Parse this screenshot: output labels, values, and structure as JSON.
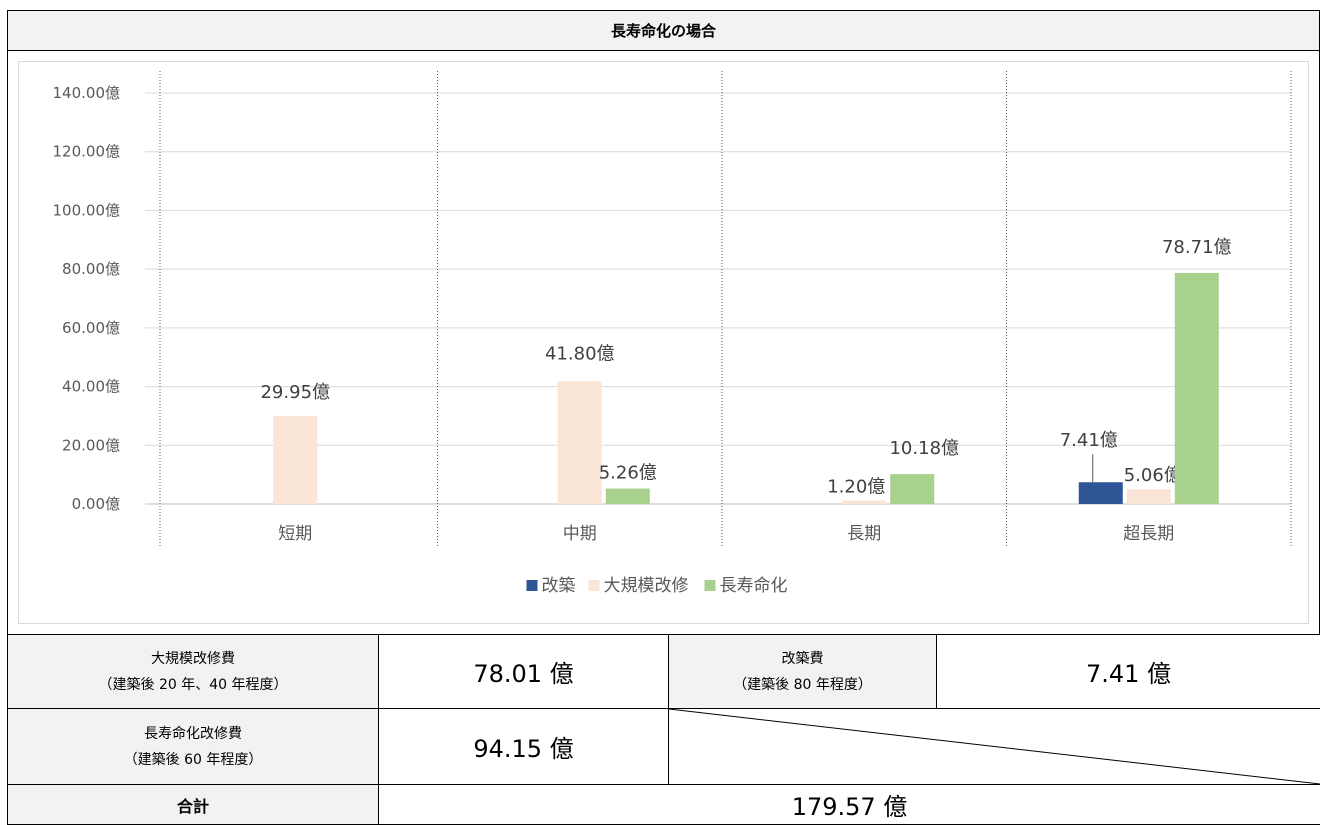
{
  "title": "長寿命化の場合",
  "chart_data": {
    "type": "bar",
    "categories": [
      "短期",
      "中期",
      "長期",
      "超長期"
    ],
    "series": [
      {
        "name": "改築",
        "color": "#2f5597",
        "values": [
          null,
          null,
          null,
          7.41
        ],
        "labels": [
          "",
          "",
          "",
          "7.41億"
        ]
      },
      {
        "name": "大規模改修",
        "color": "#fbe5d6",
        "values": [
          29.95,
          41.8,
          1.2,
          5.06
        ],
        "labels": [
          "29.95億",
          "41.80億",
          "1.20億",
          "5.06億"
        ]
      },
      {
        "name": "長寿命化",
        "color": "#a9d18e",
        "values": [
          null,
          5.26,
          10.18,
          78.71
        ],
        "labels": [
          "",
          "5.26億",
          "10.18億",
          "78.71億"
        ]
      }
    ],
    "y_ticks": [
      "0.00億",
      "20.00億",
      "40.00億",
      "60.00億",
      "80.00億",
      "100.00億",
      "120.00億",
      "140.00億"
    ],
    "ylim": [
      0,
      140
    ],
    "grid": true,
    "legend": "bottom"
  },
  "summary": {
    "large_repair_label": "大規模改修費",
    "large_repair_sub": "（建築後 20 年、40 年程度）",
    "large_repair_value": "78.01 億",
    "rebuild_label": "改築費",
    "rebuild_sub": "（建築後 80 年程度）",
    "rebuild_value": "7.41 億",
    "longevity_label": "長寿命化改修費",
    "longevity_sub": "（建築後 60 年程度）",
    "longevity_value": "94.15 億",
    "total_label": "合計",
    "total_value": "179.57 億"
  }
}
